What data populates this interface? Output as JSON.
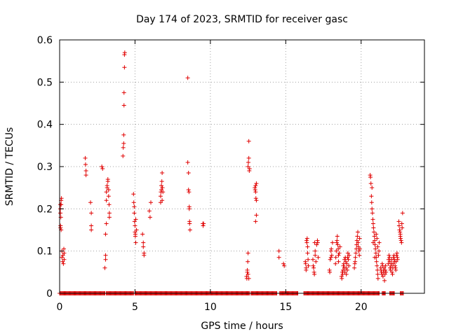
{
  "chart_data": {
    "type": "scatter",
    "title": "Day 174 of 2023, SRMTID for receiver gasc",
    "xlabel": "GPS time / hours",
    "ylabel": "SRMTID / TECUs",
    "xlim": [
      0,
      24.2
    ],
    "ylim": [
      0,
      0.6
    ],
    "x_ticks": [
      0,
      5,
      10,
      15,
      20
    ],
    "x_tick_labels": [
      "0",
      "5",
      "10",
      "15",
      "20"
    ],
    "y_ticks": [
      0,
      0.1,
      0.2,
      0.3,
      0.4,
      0.5,
      0.6
    ],
    "y_tick_labels": [
      "0",
      "0.1",
      "0.2",
      "0.3",
      "0.4",
      "0.5",
      "0.6"
    ],
    "grid": true,
    "marker": "+",
    "series_color": "#e00000",
    "zero_intervals": [
      [
        0.0,
        3.0
      ],
      [
        3.1,
        4.9
      ],
      [
        5.0,
        12.6
      ],
      [
        12.7,
        14.4
      ],
      [
        14.6,
        15.8
      ],
      [
        16.2,
        21.2
      ],
      [
        21.4,
        21.6
      ],
      [
        21.9,
        22.2
      ],
      [
        22.6,
        22.8
      ]
    ],
    "zero_step": 0.05,
    "points": [
      [
        0.05,
        0.21
      ],
      [
        0.05,
        0.2
      ],
      [
        0.05,
        0.19
      ],
      [
        0.06,
        0.16
      ],
      [
        0.06,
        0.155
      ],
      [
        0.08,
        0.18
      ],
      [
        0.1,
        0.22
      ],
      [
        0.1,
        0.21
      ],
      [
        0.1,
        0.15
      ],
      [
        0.12,
        0.225
      ],
      [
        0.15,
        0.1
      ],
      [
        0.15,
        0.085
      ],
      [
        0.2,
        0.075
      ],
      [
        0.22,
        0.09
      ],
      [
        0.25,
        0.07
      ],
      [
        0.28,
        0.105
      ],
      [
        0.3,
        0.08
      ],
      [
        0.3,
        0.095
      ],
      [
        1.7,
        0.32
      ],
      [
        1.72,
        0.305
      ],
      [
        1.75,
        0.29
      ],
      [
        1.75,
        0.28
      ],
      [
        2.05,
        0.215
      ],
      [
        2.1,
        0.19
      ],
      [
        2.1,
        0.16
      ],
      [
        2.1,
        0.15
      ],
      [
        2.8,
        0.3
      ],
      [
        2.85,
        0.295
      ],
      [
        3.0,
        0.06
      ],
      [
        3.05,
        0.09
      ],
      [
        3.05,
        0.08
      ],
      [
        3.05,
        0.14
      ],
      [
        3.1,
        0.165
      ],
      [
        3.1,
        0.22
      ],
      [
        3.1,
        0.24
      ],
      [
        3.15,
        0.255
      ],
      [
        3.15,
        0.25
      ],
      [
        3.2,
        0.27
      ],
      [
        3.2,
        0.265
      ],
      [
        3.25,
        0.245
      ],
      [
        3.25,
        0.23
      ],
      [
        3.28,
        0.21
      ],
      [
        3.3,
        0.19
      ],
      [
        3.3,
        0.18
      ],
      [
        4.2,
        0.325
      ],
      [
        4.22,
        0.345
      ],
      [
        4.25,
        0.355
      ],
      [
        4.25,
        0.375
      ],
      [
        4.27,
        0.445
      ],
      [
        4.27,
        0.475
      ],
      [
        4.3,
        0.535
      ],
      [
        4.3,
        0.565
      ],
      [
        4.32,
        0.57
      ],
      [
        4.9,
        0.235
      ],
      [
        4.92,
        0.215
      ],
      [
        4.95,
        0.205
      ],
      [
        4.95,
        0.19
      ],
      [
        4.97,
        0.17
      ],
      [
        5.0,
        0.16
      ],
      [
        5.0,
        0.145
      ],
      [
        5.02,
        0.14
      ],
      [
        5.02,
        0.135
      ],
      [
        5.05,
        0.12
      ],
      [
        5.05,
        0.175
      ],
      [
        5.1,
        0.15
      ],
      [
        5.5,
        0.14
      ],
      [
        5.55,
        0.12
      ],
      [
        5.55,
        0.11
      ],
      [
        5.6,
        0.095
      ],
      [
        5.6,
        0.09
      ],
      [
        5.95,
        0.195
      ],
      [
        6.0,
        0.18
      ],
      [
        6.05,
        0.215
      ],
      [
        6.7,
        0.215
      ],
      [
        6.7,
        0.23
      ],
      [
        6.72,
        0.24
      ],
      [
        6.75,
        0.245
      ],
      [
        6.75,
        0.255
      ],
      [
        6.78,
        0.265
      ],
      [
        6.8,
        0.22
      ],
      [
        6.8,
        0.285
      ],
      [
        6.82,
        0.25
      ],
      [
        6.85,
        0.24
      ],
      [
        8.5,
        0.51
      ],
      [
        8.5,
        0.31
      ],
      [
        8.55,
        0.285
      ],
      [
        8.55,
        0.245
      ],
      [
        8.58,
        0.24
      ],
      [
        8.6,
        0.2
      ],
      [
        8.6,
        0.205
      ],
      [
        8.62,
        0.17
      ],
      [
        8.62,
        0.165
      ],
      [
        8.65,
        0.15
      ],
      [
        9.5,
        0.165
      ],
      [
        9.55,
        0.165
      ],
      [
        9.52,
        0.16
      ],
      [
        12.4,
        0.04
      ],
      [
        12.42,
        0.035
      ],
      [
        12.45,
        0.05
      ],
      [
        12.45,
        0.055
      ],
      [
        12.48,
        0.075
      ],
      [
        12.5,
        0.095
      ],
      [
        12.5,
        0.3
      ],
      [
        12.52,
        0.31
      ],
      [
        12.55,
        0.36
      ],
      [
        12.55,
        0.32
      ],
      [
        12.58,
        0.29
      ],
      [
        12.6,
        0.295
      ],
      [
        12.55,
        0.035
      ],
      [
        12.5,
        0.045
      ],
      [
        12.95,
        0.25
      ],
      [
        12.97,
        0.245
      ],
      [
        13.0,
        0.255
      ],
      [
        13.0,
        0.24
      ],
      [
        13.02,
        0.225
      ],
      [
        13.05,
        0.22
      ],
      [
        13.05,
        0.185
      ],
      [
        13.0,
        0.17
      ],
      [
        13.05,
        0.26
      ],
      [
        14.55,
        0.1
      ],
      [
        14.55,
        0.085
      ],
      [
        14.85,
        0.07
      ],
      [
        14.9,
        0.065
      ],
      [
        16.3,
        0.075
      ],
      [
        16.32,
        0.07
      ],
      [
        16.35,
        0.06
      ],
      [
        16.35,
        0.055
      ],
      [
        16.38,
        0.125
      ],
      [
        16.4,
        0.12
      ],
      [
        16.42,
        0.13
      ],
      [
        16.45,
        0.11
      ],
      [
        16.45,
        0.095
      ],
      [
        16.48,
        0.08
      ],
      [
        16.5,
        0.065
      ],
      [
        16.8,
        0.08
      ],
      [
        16.82,
        0.065
      ],
      [
        16.85,
        0.06
      ],
      [
        16.88,
        0.05
      ],
      [
        16.9,
        0.045
      ],
      [
        16.92,
        0.12
      ],
      [
        16.95,
        0.1
      ],
      [
        16.95,
        0.09
      ],
      [
        17.0,
        0.075
      ],
      [
        17.05,
        0.115
      ],
      [
        17.1,
        0.125
      ],
      [
        17.12,
        0.12
      ],
      [
        17.15,
        0.085
      ],
      [
        17.9,
        0.055
      ],
      [
        17.92,
        0.05
      ],
      [
        17.95,
        0.08
      ],
      [
        18.0,
        0.085
      ],
      [
        18.0,
        0.1
      ],
      [
        18.02,
        0.105
      ],
      [
        18.05,
        0.09
      ],
      [
        18.1,
        0.12
      ],
      [
        18.3,
        0.07
      ],
      [
        18.32,
        0.085
      ],
      [
        18.35,
        0.1
      ],
      [
        18.38,
        0.12
      ],
      [
        18.4,
        0.125
      ],
      [
        18.42,
        0.135
      ],
      [
        18.45,
        0.115
      ],
      [
        18.48,
        0.105
      ],
      [
        18.5,
        0.09
      ],
      [
        18.5,
        0.075
      ],
      [
        18.55,
        0.095
      ],
      [
        18.6,
        0.11
      ],
      [
        18.7,
        0.04
      ],
      [
        18.72,
        0.035
      ],
      [
        18.75,
        0.05
      ],
      [
        18.78,
        0.045
      ],
      [
        18.8,
        0.055
      ],
      [
        18.82,
        0.065
      ],
      [
        18.85,
        0.07
      ],
      [
        18.88,
        0.06
      ],
      [
        18.9,
        0.08
      ],
      [
        18.92,
        0.05
      ],
      [
        18.95,
        0.085
      ],
      [
        18.98,
        0.075
      ],
      [
        19.0,
        0.06
      ],
      [
        19.02,
        0.045
      ],
      [
        19.05,
        0.07
      ],
      [
        19.08,
        0.055
      ],
      [
        19.1,
        0.085
      ],
      [
        19.12,
        0.095
      ],
      [
        19.15,
        0.08
      ],
      [
        19.18,
        0.065
      ],
      [
        19.2,
        0.09
      ],
      [
        19.55,
        0.06
      ],
      [
        19.58,
        0.07
      ],
      [
        19.6,
        0.075
      ],
      [
        19.62,
        0.085
      ],
      [
        19.65,
        0.095
      ],
      [
        19.68,
        0.105
      ],
      [
        19.7,
        0.115
      ],
      [
        19.72,
        0.125
      ],
      [
        19.75,
        0.135
      ],
      [
        19.78,
        0.145
      ],
      [
        19.8,
        0.12
      ],
      [
        19.82,
        0.11
      ],
      [
        19.85,
        0.1
      ],
      [
        19.88,
        0.09
      ],
      [
        19.9,
        0.13
      ],
      [
        19.92,
        0.105
      ],
      [
        20.6,
        0.28
      ],
      [
        20.62,
        0.275
      ],
      [
        20.65,
        0.26
      ],
      [
        20.68,
        0.23
      ],
      [
        20.7,
        0.215
      ],
      [
        20.72,
        0.2
      ],
      [
        20.75,
        0.19
      ],
      [
        20.78,
        0.175
      ],
      [
        20.8,
        0.165
      ],
      [
        20.82,
        0.155
      ],
      [
        20.85,
        0.145
      ],
      [
        20.88,
        0.135
      ],
      [
        20.9,
        0.125
      ],
      [
        20.92,
        0.115
      ],
      [
        20.95,
        0.105
      ],
      [
        20.98,
        0.095
      ],
      [
        21.0,
        0.085
      ],
      [
        21.02,
        0.075
      ],
      [
        21.05,
        0.065
      ],
      [
        21.08,
        0.055
      ],
      [
        21.1,
        0.045
      ],
      [
        21.12,
        0.035
      ],
      [
        20.72,
        0.25
      ],
      [
        20.8,
        0.12
      ],
      [
        20.9,
        0.085
      ],
      [
        21.0,
        0.14
      ],
      [
        21.05,
        0.13
      ],
      [
        21.1,
        0.11
      ],
      [
        21.15,
        0.09
      ],
      [
        21.18,
        0.1
      ],
      [
        21.2,
        0.12
      ],
      [
        21.3,
        0.06
      ],
      [
        21.32,
        0.055
      ],
      [
        21.35,
        0.05
      ],
      [
        21.38,
        0.045
      ],
      [
        21.4,
        0.07
      ],
      [
        21.42,
        0.065
      ],
      [
        21.45,
        0.04
      ],
      [
        21.48,
        0.05
      ],
      [
        21.5,
        0.055
      ],
      [
        21.52,
        0.06
      ],
      [
        21.55,
        0.03
      ],
      [
        21.58,
        0.045
      ],
      [
        21.6,
        0.055
      ],
      [
        21.62,
        0.065
      ],
      [
        21.65,
        0.05
      ],
      [
        21.8,
        0.07
      ],
      [
        21.82,
        0.08
      ],
      [
        21.85,
        0.09
      ],
      [
        21.88,
        0.085
      ],
      [
        21.9,
        0.075
      ],
      [
        21.92,
        0.06
      ],
      [
        21.95,
        0.055
      ],
      [
        21.98,
        0.065
      ],
      [
        22.0,
        0.07
      ],
      [
        22.02,
        0.08
      ],
      [
        22.05,
        0.05
      ],
      [
        22.08,
        0.045
      ],
      [
        22.1,
        0.06
      ],
      [
        22.12,
        0.07
      ],
      [
        22.15,
        0.085
      ],
      [
        22.18,
        0.09
      ],
      [
        22.2,
        0.08
      ],
      [
        22.22,
        0.075
      ],
      [
        22.25,
        0.065
      ],
      [
        22.28,
        0.06
      ],
      [
        22.3,
        0.055
      ],
      [
        22.32,
        0.075
      ],
      [
        22.35,
        0.09
      ],
      [
        22.38,
        0.095
      ],
      [
        22.4,
        0.085
      ],
      [
        22.42,
        0.08
      ],
      [
        22.5,
        0.17
      ],
      [
        22.52,
        0.16
      ],
      [
        22.55,
        0.15
      ],
      [
        22.58,
        0.145
      ],
      [
        22.6,
        0.14
      ],
      [
        22.62,
        0.13
      ],
      [
        22.65,
        0.125
      ],
      [
        22.68,
        0.12
      ],
      [
        22.7,
        0.165
      ],
      [
        22.72,
        0.155
      ],
      [
        22.75,
        0.19
      ],
      [
        22.6,
        0.135
      ]
    ]
  }
}
